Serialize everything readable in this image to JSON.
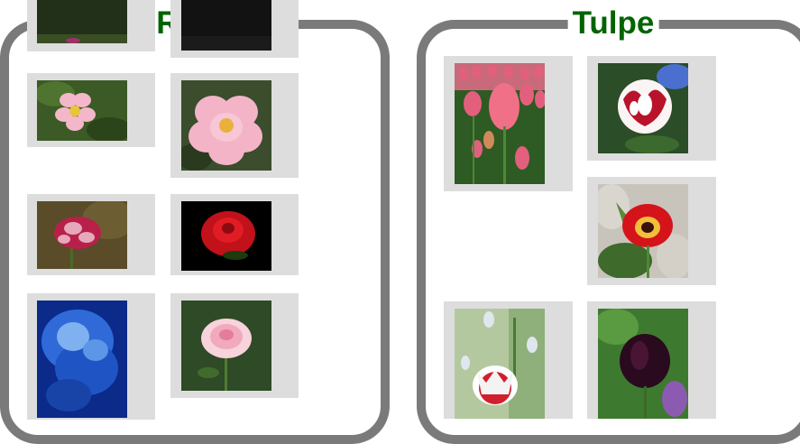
{
  "colors": {
    "frame": "#7a7a7a",
    "title": "#006400",
    "tile_bg": "#dddddd"
  },
  "galleries": {
    "rose": {
      "title": "Rose"
    },
    "tulpe": {
      "title": "Tulpe"
    }
  },
  "images": {
    "rose": [
      "pink-wild-rose-photo",
      "pink-rose-bloom-photo",
      "red-striped-rose-photo",
      "red-rose-black-bg-photo",
      "blue-rose-photo",
      "white-pink-rose-photo"
    ],
    "tulpe": [
      "pink-tulip-field-photo",
      "red-white-striped-tulip-photo",
      "red-yellow-tulip-photo",
      "red-fringed-tulip-photo",
      "dark-purple-tulip-photo"
    ]
  }
}
